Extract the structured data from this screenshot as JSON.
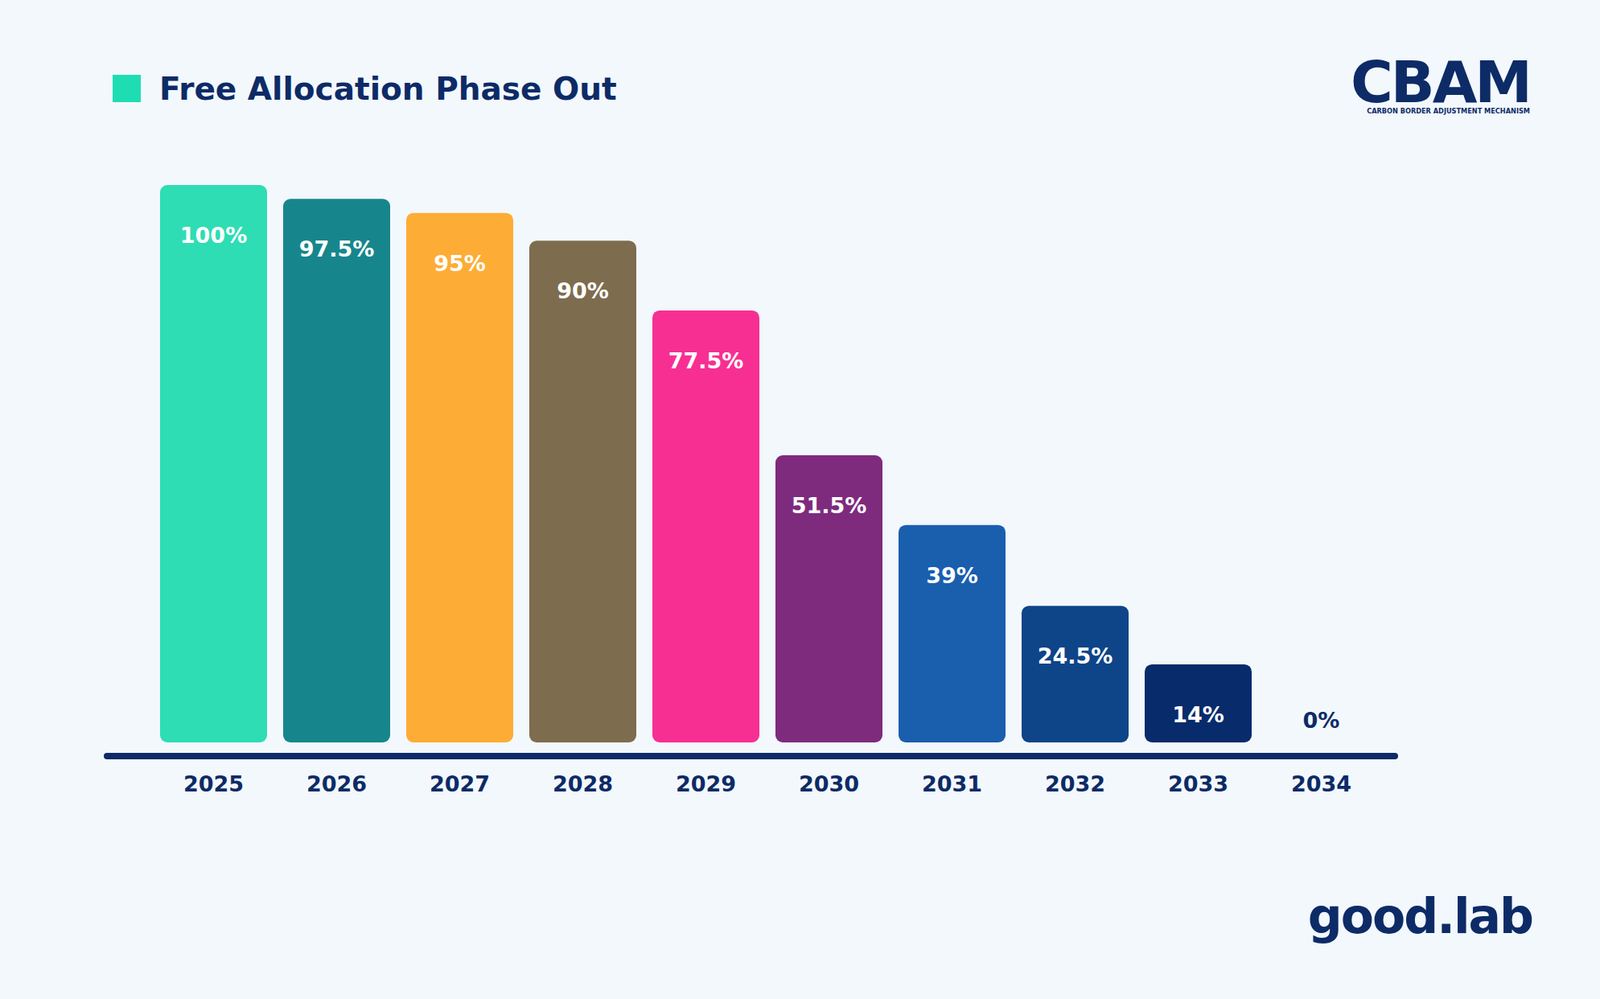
{
  "chart_data": {
    "type": "bar",
    "categories": [
      "2025",
      "2026",
      "2027",
      "2028",
      "2029",
      "2030",
      "2031",
      "2032",
      "2033",
      "2034"
    ],
    "series": [
      {
        "name": "Free Allocation Phase Out",
        "color": "#1FDDB3",
        "colors": [
          "#2EDDB4",
          "#17868C",
          "#FDAD35",
          "#7E6C4E",
          "#F72F92",
          "#7E2B7E",
          "#1A5EAE",
          "#0E4488",
          "#072B6B",
          "#0C2D6B"
        ],
        "values": [
          100,
          97.5,
          95,
          90,
          77.5,
          51.5,
          39,
          24.5,
          14,
          0
        ],
        "value_labels": [
          "100%",
          "97.5%",
          "95%",
          "90%",
          "77.5%",
          "51.5%",
          "39%",
          "24.5%",
          "14%",
          "0%"
        ]
      }
    ],
    "ylim": [
      0,
      100
    ],
    "legend": "top-left",
    "data_labels": true,
    "tick_labels": "x",
    "grid": false
  },
  "logo": {
    "title": "CBAM",
    "subtitle": "CARBON BORDER ADJUSTMENT MECHANISM"
  },
  "brand": "good.lab"
}
